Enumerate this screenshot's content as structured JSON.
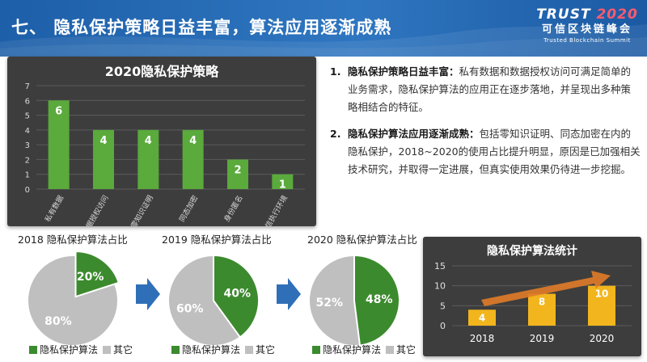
{
  "page": {
    "title": "七、 隐私保护策略日益丰富，算法应用逐渐成熟",
    "logo": {
      "brand": "TRUST",
      "year": "2020",
      "cn": "可信区块链峰会",
      "en": "Trusted Blockchain Summit"
    }
  },
  "colors": {
    "header": "#2266b0",
    "panel": "#3d3d3d",
    "green": "#5aaa3c",
    "dark_green": "#3c8a2e",
    "gray": "#bfbfbf",
    "gold": "#f2b51d",
    "arrow": "#e07b28",
    "blue_arrow": "#2f6fb8"
  },
  "text": {
    "items": [
      {
        "num": "1.",
        "head": "隐私保护策略日益丰富：",
        "body": "私有数据和数据授权访问可满足简单的业务需求，隐私保护算法的应用正在逐步落地，并呈现出多种策略相结合的特征。"
      },
      {
        "num": "2.",
        "head": "隐私保护算法应用逐渐成熟：",
        "body": "包括零知识证明、同态加密在内的隐私保护，2018~2020的使用占比提升明显，原因是已加强相关技术研究，并取得一定进展，但真实使用效果仍待进一步挖掘。"
      }
    ]
  },
  "chart_data": [
    {
      "type": "bar",
      "title": "2020隐私保护策略",
      "categories": [
        "私有数据",
        "数据授权访问",
        "零知识证明",
        "同态加密",
        "身份匿名",
        "可信执行环境"
      ],
      "values": [
        6,
        4,
        4,
        4,
        2,
        1
      ],
      "ylim": [
        0,
        7
      ],
      "yticks": [
        0,
        1,
        2,
        3,
        4,
        5,
        6,
        7
      ],
      "grid": true,
      "data_labels": true
    },
    {
      "type": "pie",
      "title": "2018 隐私保护算法占比",
      "slices": [
        {
          "label": "隐私保护算法",
          "value": 20,
          "text": "20%"
        },
        {
          "label": "其它",
          "value": 80,
          "text": "80%"
        }
      ],
      "legend": [
        "隐私保护算法",
        "其它"
      ],
      "legend_position": "bottom"
    },
    {
      "type": "pie",
      "title": "2019 隐私保护算法占比",
      "slices": [
        {
          "label": "隐私保护算法",
          "value": 40,
          "text": "40%"
        },
        {
          "label": "其它",
          "value": 60,
          "text": "60%"
        }
      ],
      "legend": [
        "隐私保护算法",
        "其它"
      ],
      "legend_position": "bottom"
    },
    {
      "type": "pie",
      "title": "2020 隐私保护算法占比",
      "slices": [
        {
          "label": "隐私保护算法",
          "value": 48,
          "text": "48%"
        },
        {
          "label": "其它",
          "value": 52,
          "text": "52%"
        }
      ],
      "legend": [
        "隐私保护算法",
        "其它"
      ],
      "legend_position": "bottom"
    },
    {
      "type": "bar",
      "title": "隐私保护算法统计",
      "categories": [
        "2018",
        "2019",
        "2020"
      ],
      "values": [
        4,
        8,
        10
      ],
      "ylim": [
        0,
        15
      ],
      "yticks": [
        0,
        5,
        10,
        15
      ],
      "grid": true,
      "data_labels": true,
      "annotation": "upward-trend-arrow"
    }
  ]
}
